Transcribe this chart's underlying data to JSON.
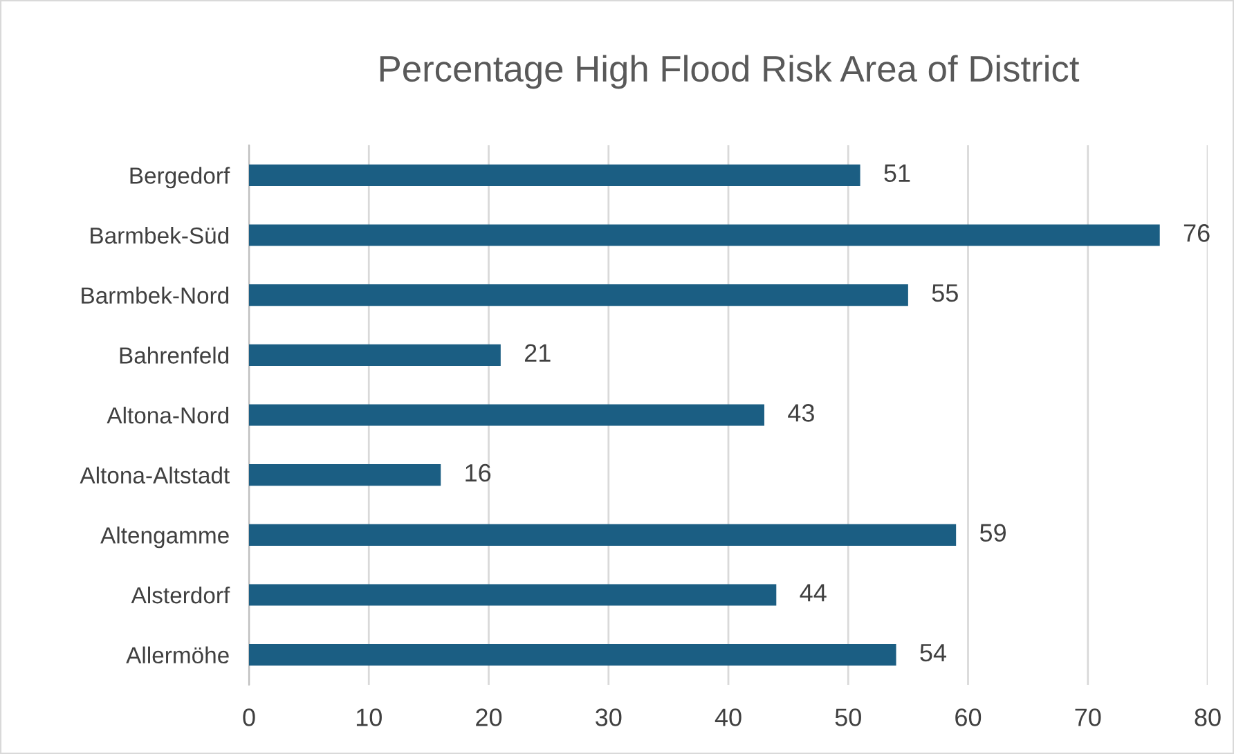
{
  "chart_data": {
    "type": "bar",
    "orientation": "horizontal",
    "title": "Percentage High Flood Risk Area of District",
    "categories": [
      "Bergedorf",
      "Barmbek-Süd",
      "Barmbek-Nord",
      "Bahrenfeld",
      "Altona-Nord",
      "Altona-Altstadt",
      "Altengamme",
      "Alsterdorf",
      "Allermöhe"
    ],
    "values": [
      51,
      76,
      55,
      21,
      43,
      16,
      59,
      44,
      54
    ],
    "color": "#1b5e83",
    "xlim": [
      0,
      80
    ],
    "xticks": [
      0,
      10,
      20,
      30,
      40,
      50,
      60,
      70,
      80
    ],
    "grid": "x",
    "data_labels": true
  }
}
